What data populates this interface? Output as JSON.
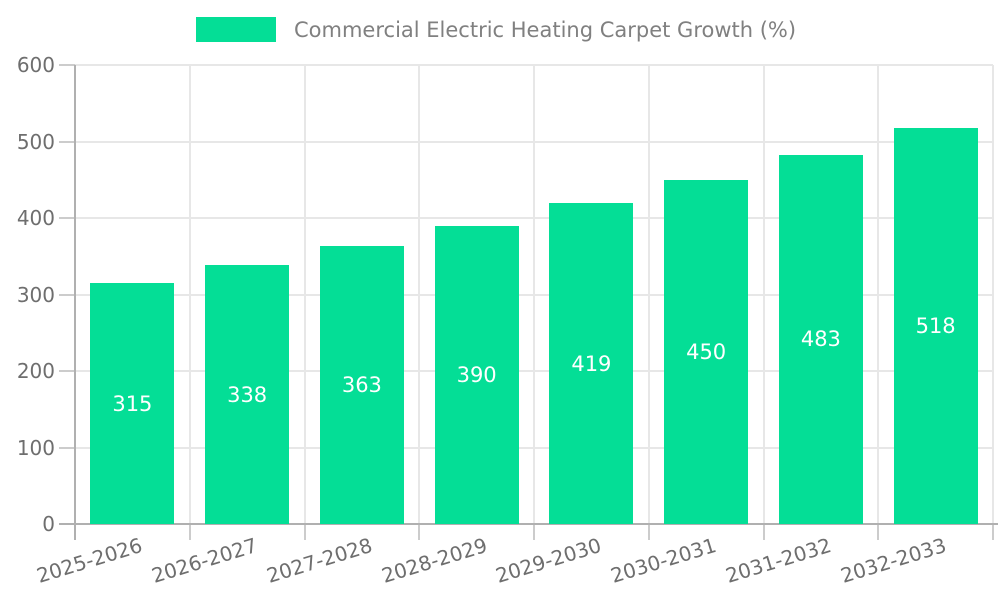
{
  "legend": {
    "label": "Commercial Electric Heating Carpet Growth (%)",
    "swatch_color": "#04DE96"
  },
  "chart_data": {
    "type": "bar",
    "title": "Commercial Electric Heating Carpet Growth (%)",
    "categories": [
      "2025-2026",
      "2026-2027",
      "2027-2028",
      "2028-2029",
      "2029-2030",
      "2030-2031",
      "2031-2032",
      "2032-2033"
    ],
    "values": [
      315,
      338,
      363,
      390,
      419,
      450,
      483,
      518
    ],
    "xlabel": "",
    "ylabel": "",
    "ylim": [
      0,
      600
    ],
    "yticks": [
      0,
      100,
      200,
      300,
      400,
      500,
      600
    ],
    "bar_color": "#04DE96",
    "value_label_color": "#ffffff",
    "axis_label_color": "#6e6e6e",
    "grid": true,
    "legend_position": "top",
    "x_label_rotation_deg": -17
  }
}
